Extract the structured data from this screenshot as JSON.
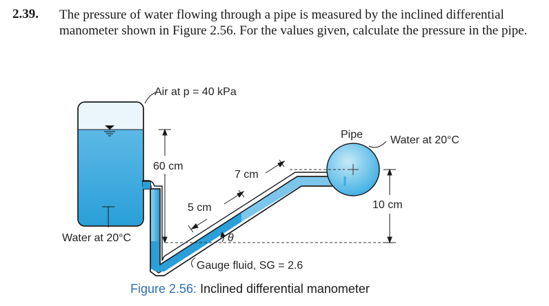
{
  "problem": {
    "number": "2.39.",
    "text": "The pressure of water flowing through a pipe is measured by the inclined differential manometer shown in Figure 2.56. For the values given, calculate the pressure in the pipe."
  },
  "figure": {
    "labels": {
      "air": "Air at p = 40 kPa",
      "pipe": "Pipe",
      "water_right": "Water at 20°C",
      "water_left": "Water at 20°C",
      "dim_60": "60 cm",
      "dim_7": "7 cm",
      "dim_5": "5 cm",
      "dim_10": "10 cm",
      "theta": "θ",
      "gauge_fluid": "Gauge fluid, SG = 2.6"
    },
    "caption": {
      "prefix": "Figure 2.56:",
      "title": " Inclined differential manometer"
    },
    "colors": {
      "water": "#29a3dc",
      "water_light": "#9fd4ef",
      "caption": "#2d6eb8",
      "outline": "#1a1a1a"
    }
  }
}
